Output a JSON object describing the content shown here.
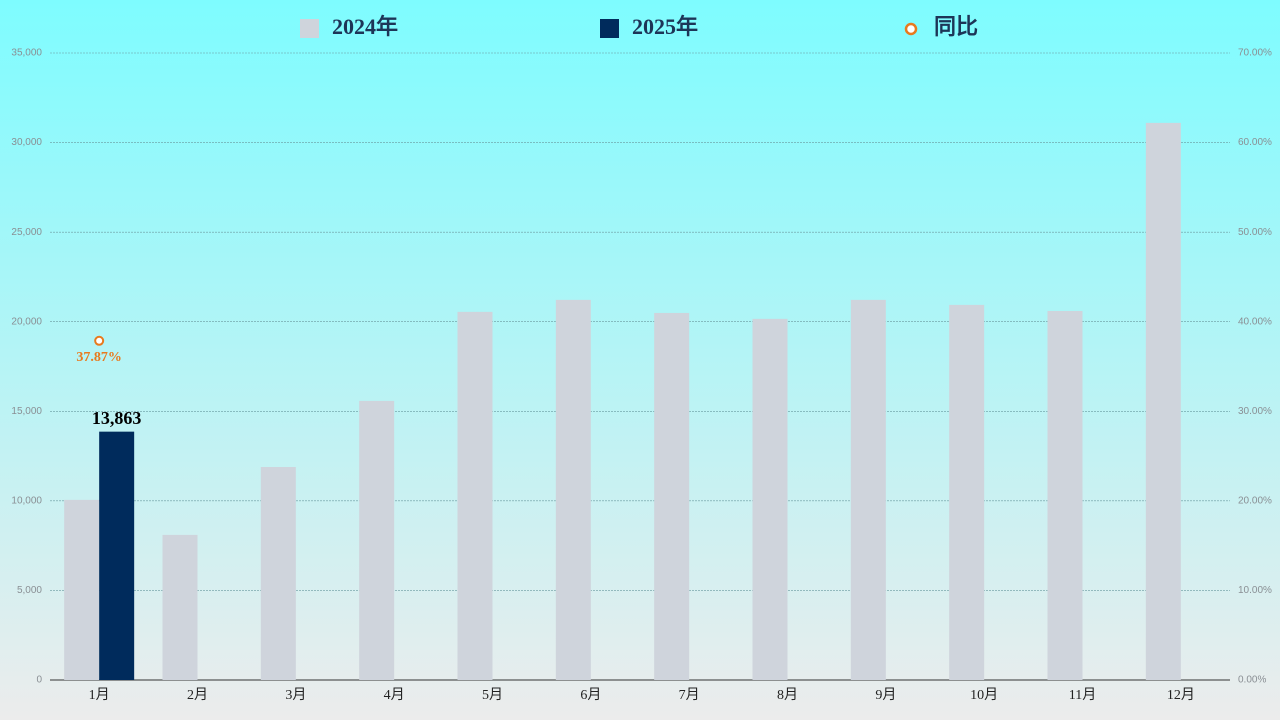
{
  "chart_data": {
    "type": "bar",
    "categories": [
      "1月",
      "2月",
      "3月",
      "4月",
      "5月",
      "6月",
      "7月",
      "8月",
      "9月",
      "10月",
      "11月",
      "12月"
    ],
    "series": [
      {
        "name": "2024年",
        "type": "bar",
        "color": "#cfd4dc",
        "values": [
          10055,
          8100,
          11890,
          15580,
          20550,
          21220,
          20490,
          20160,
          21220,
          20940,
          20600,
          31100
        ]
      },
      {
        "name": "2025年",
        "type": "bar",
        "color": "#002b5c",
        "values": [
          13863,
          null,
          null,
          null,
          null,
          null,
          null,
          null,
          null,
          null,
          null,
          null
        ],
        "value_labels": [
          "13,863",
          null,
          null,
          null,
          null,
          null,
          null,
          null,
          null,
          null,
          null,
          null
        ]
      },
      {
        "name": "同比",
        "type": "line",
        "axis": "y2",
        "color": "#e87a1e",
        "values": [
          37.87,
          null,
          null,
          null,
          null,
          null,
          null,
          null,
          null,
          null,
          null,
          null
        ],
        "value_labels": [
          "37.87%",
          null,
          null,
          null,
          null,
          null,
          null,
          null,
          null,
          null,
          null,
          null
        ]
      }
    ],
    "ylim": [
      0,
      35000
    ],
    "yticks": [
      0,
      {
        "value": 5000,
        "label": "5,000"
      },
      {
        "value": 10000,
        "label": "10,000"
      },
      {
        "value": 15000,
        "label": "15,000"
      },
      {
        "value": 20000,
        "label": "20,000"
      },
      {
        "value": 25000,
        "label": "25,000"
      },
      {
        "value": 30000,
        "label": "30,000"
      },
      {
        "value": 35000,
        "label": "35,000"
      }
    ],
    "y2lim": [
      0,
      70
    ],
    "y2ticks": [
      {
        "value": 0,
        "label": "0.00%"
      },
      {
        "value": 10,
        "label": "10.00%"
      },
      {
        "value": 20,
        "label": "20.00%"
      },
      {
        "value": 30,
        "label": "30.00%"
      },
      {
        "value": 40,
        "label": "40.00%"
      },
      {
        "value": 50,
        "label": "50.00%"
      },
      {
        "value": 60,
        "label": "60.00%"
      },
      {
        "value": 70,
        "label": "70.00%"
      }
    ],
    "grid": true,
    "legend": "top"
  }
}
